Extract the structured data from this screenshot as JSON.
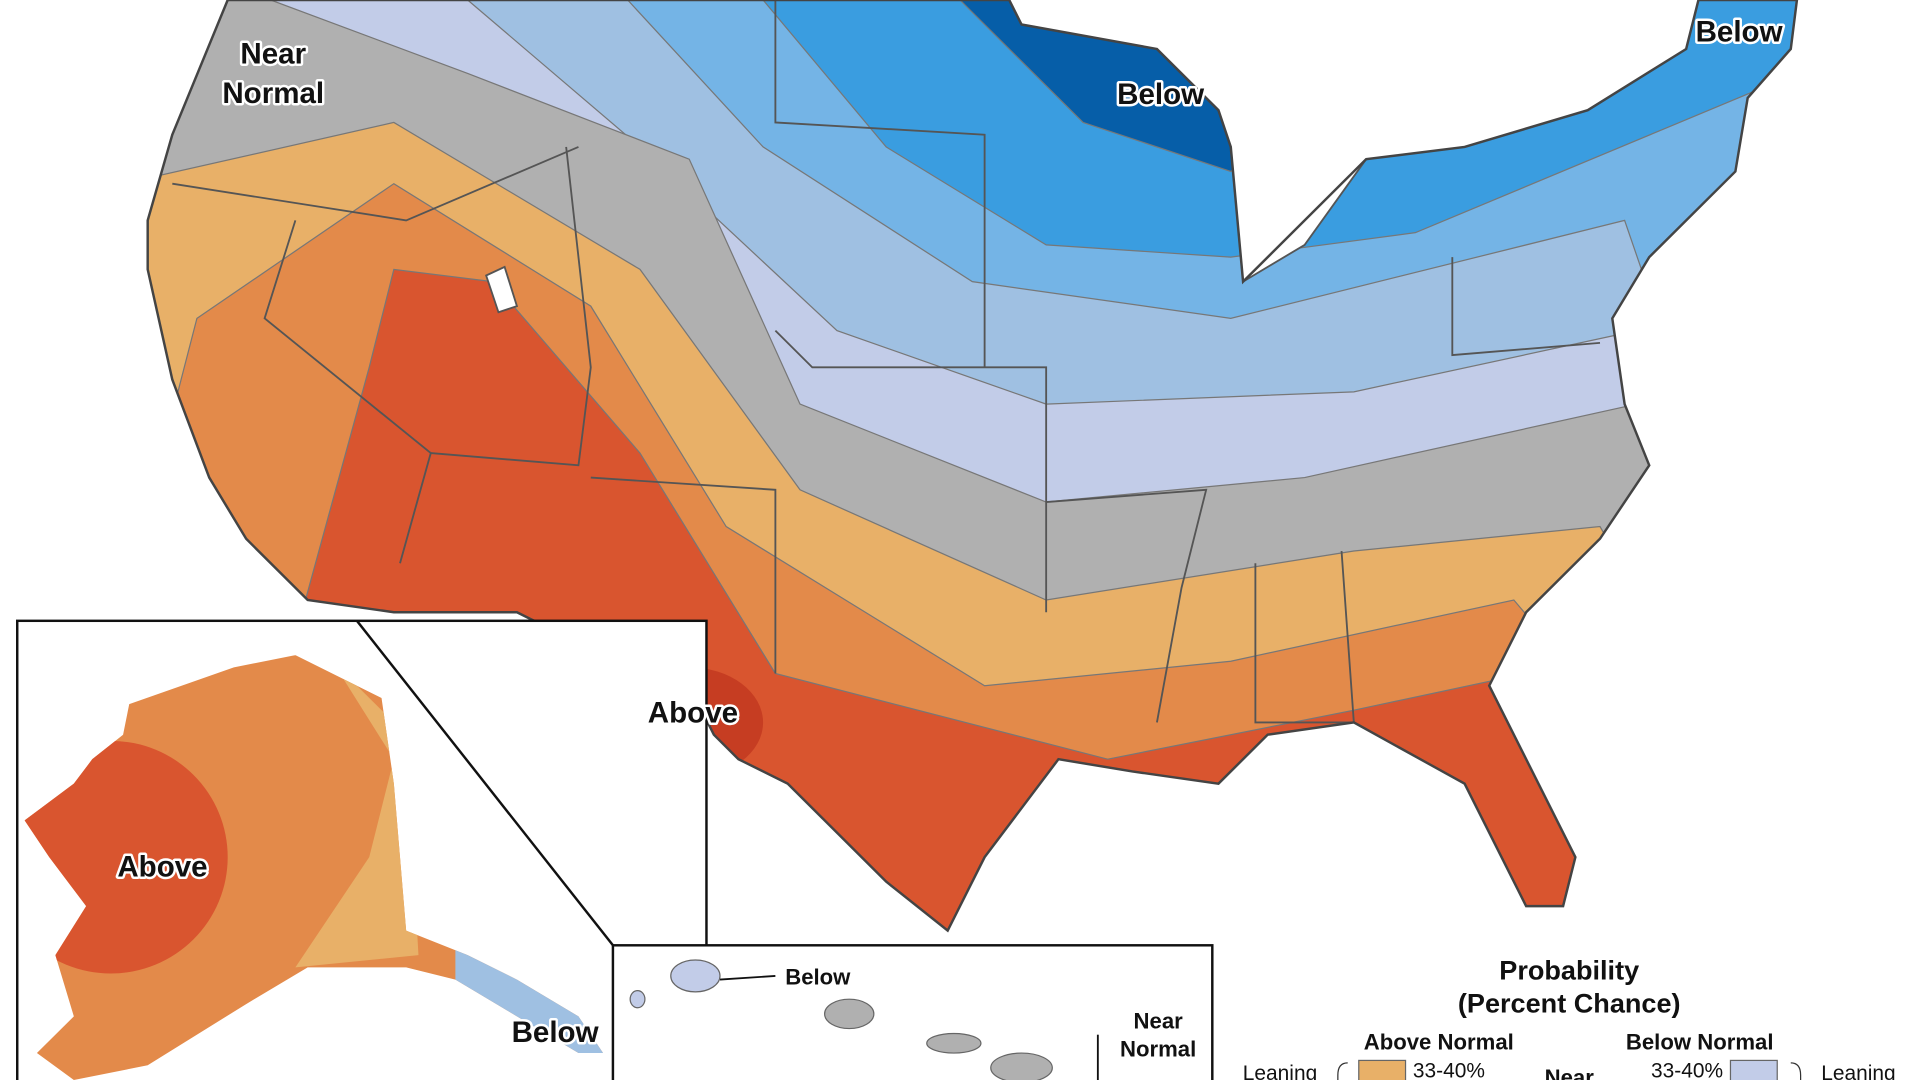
{
  "map": {
    "labels": [
      {
        "lines": [
          "Near",
          "Normal"
        ]
      },
      {
        "lines": [
          "Below"
        ]
      },
      {
        "lines": [
          "Below"
        ]
      },
      {
        "lines": [
          "Above"
        ]
      },
      {
        "lines": [
          "Above"
        ]
      },
      {
        "lines": [
          "Below"
        ]
      }
    ],
    "hawaii": {
      "labels": [
        "Below",
        "Near",
        "Normal"
      ]
    },
    "legend": {
      "title": [
        "Probability",
        "(Percent Chance)"
      ],
      "above": {
        "heading": "Above Normal",
        "range": "33-40%"
      },
      "near": "Near",
      "below": {
        "heading": "Below Normal",
        "range": "33-40%"
      },
      "leaning_left": "Leaning",
      "leaning_right": "Leaning"
    }
  }
}
